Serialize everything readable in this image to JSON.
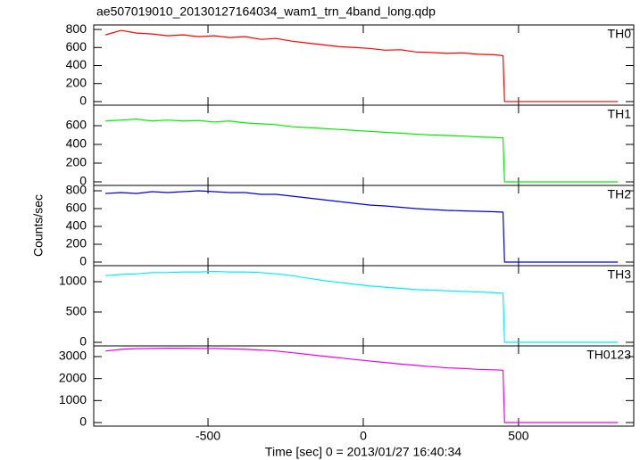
{
  "chart_data": [
    {
      "type": "line",
      "title": "ae507019010_20130127164034_wam1_trn_4band_long.qdp",
      "x": [
        -830,
        -780,
        -730,
        -680,
        -630,
        -580,
        -530,
        -480,
        -430,
        -380,
        -330,
        -280,
        -230,
        -180,
        -130,
        -80,
        -30,
        20,
        70,
        120,
        170,
        220,
        270,
        320,
        370,
        420,
        450,
        455,
        820
      ],
      "series": [
        {
          "name": "TH0",
          "color": "#ff0000",
          "values": [
            740,
            790,
            760,
            750,
            730,
            740,
            720,
            730,
            710,
            720,
            690,
            700,
            670,
            650,
            630,
            610,
            600,
            590,
            570,
            575,
            550,
            545,
            535,
            540,
            525,
            520,
            510,
            0,
            0
          ]
        }
      ],
      "xlim": [
        -868,
        871
      ],
      "ylim": [
        -40,
        850
      ],
      "yticks": [
        0,
        200,
        400,
        600,
        800
      ]
    },
    {
      "type": "line",
      "x": [
        -830,
        -780,
        -730,
        -680,
        -630,
        -580,
        -530,
        -480,
        -430,
        -380,
        -330,
        -280,
        -230,
        -180,
        -130,
        -80,
        -30,
        20,
        70,
        120,
        170,
        220,
        270,
        320,
        370,
        420,
        450,
        455,
        820
      ],
      "series": [
        {
          "name": "TH1",
          "color": "#00ee00",
          "values": [
            650,
            660,
            670,
            650,
            660,
            650,
            655,
            640,
            650,
            630,
            620,
            610,
            590,
            580,
            570,
            560,
            550,
            540,
            530,
            520,
            510,
            500,
            495,
            490,
            480,
            475,
            470,
            0,
            0
          ]
        }
      ],
      "xlim": [
        -868,
        871
      ],
      "ylim": [
        -38,
        819
      ],
      "yticks": [
        0,
        200,
        400,
        600
      ]
    },
    {
      "type": "line",
      "ylabel": "Counts/sec",
      "x": [
        -830,
        -780,
        -730,
        -680,
        -630,
        -580,
        -530,
        -480,
        -430,
        -380,
        -330,
        -280,
        -230,
        -180,
        -130,
        -80,
        -30,
        20,
        70,
        120,
        170,
        220,
        270,
        320,
        370,
        420,
        450,
        455,
        820
      ],
      "series": [
        {
          "name": "TH2",
          "color": "#0000dd",
          "values": [
            770,
            780,
            770,
            790,
            780,
            790,
            800,
            790,
            780,
            780,
            760,
            760,
            740,
            720,
            700,
            680,
            660,
            640,
            630,
            615,
            600,
            590,
            580,
            575,
            570,
            565,
            560,
            0,
            0
          ]
        }
      ],
      "xlim": [
        -868,
        871
      ],
      "ylim": [
        -40,
        860
      ],
      "yticks": [
        0,
        200,
        400,
        600,
        800
      ]
    },
    {
      "type": "line",
      "x": [
        -830,
        -780,
        -730,
        -680,
        -630,
        -580,
        -530,
        -480,
        -430,
        -380,
        -330,
        -280,
        -230,
        -180,
        -130,
        -80,
        -30,
        20,
        70,
        120,
        170,
        220,
        270,
        320,
        370,
        420,
        450,
        455,
        820
      ],
      "series": [
        {
          "name": "TH3",
          "color": "#00eeff",
          "values": [
            1100,
            1120,
            1130,
            1150,
            1150,
            1160,
            1160,
            1170,
            1160,
            1160,
            1150,
            1130,
            1100,
            1060,
            1020,
            990,
            960,
            930,
            910,
            890,
            870,
            860,
            850,
            840,
            830,
            820,
            810,
            0,
            0
          ]
        }
      ],
      "xlim": [
        -868,
        871
      ],
      "ylim": [
        -59,
        1265
      ],
      "yticks": [
        0,
        500,
        1000
      ]
    },
    {
      "type": "line",
      "xlabel": "Time [sec] 0 = 2013/01/27 16:40:34",
      "x": [
        -830,
        -780,
        -730,
        -680,
        -630,
        -580,
        -530,
        -480,
        -430,
        -380,
        -330,
        -280,
        -230,
        -180,
        -130,
        -80,
        -30,
        20,
        70,
        120,
        170,
        220,
        270,
        320,
        370,
        420,
        450,
        455,
        820
      ],
      "series": [
        {
          "name": "TH0123",
          "color": "#ee00ee",
          "values": [
            3250,
            3330,
            3360,
            3370,
            3380,
            3380,
            3370,
            3370,
            3350,
            3330,
            3300,
            3250,
            3180,
            3100,
            3020,
            2950,
            2870,
            2800,
            2730,
            2660,
            2600,
            2540,
            2490,
            2460,
            2420,
            2400,
            2380,
            0,
            0
          ]
        }
      ],
      "xlim": [
        -868,
        871
      ],
      "ylim": [
        -162,
        3486
      ],
      "yticks": [
        0,
        1000,
        2000,
        3000
      ],
      "xticks": [
        -500,
        0,
        500
      ]
    }
  ]
}
